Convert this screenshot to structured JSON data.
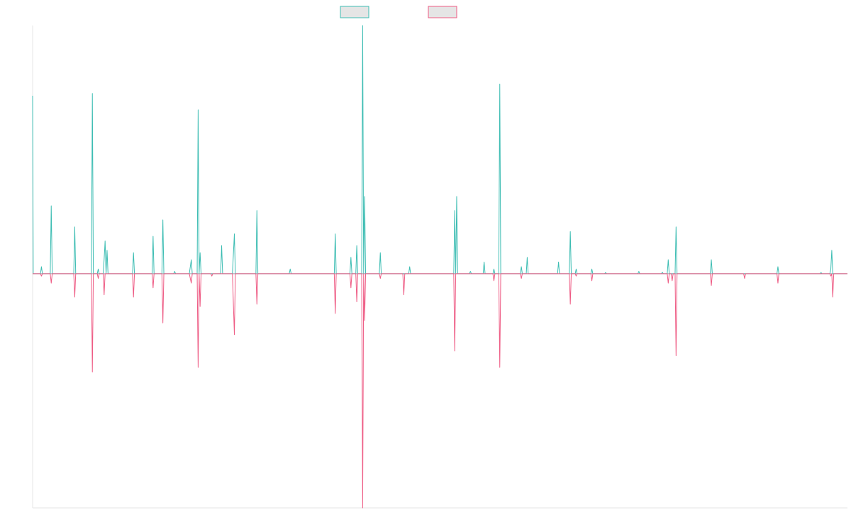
{
  "chart_data": {
    "type": "line",
    "title": "",
    "xlabel": "",
    "ylabel": "",
    "grid": false,
    "legend_position": "top-center",
    "x": [
      0,
      1,
      2,
      3,
      4,
      5,
      6,
      7,
      8,
      9,
      10,
      11,
      12,
      13,
      14,
      15,
      16,
      17,
      18,
      19,
      20,
      21,
      22,
      23,
      24,
      25,
      26,
      27,
      28,
      29,
      30,
      31,
      32,
      33,
      34,
      35,
      36,
      37,
      38,
      39,
      40,
      41,
      42,
      43,
      44,
      45,
      46,
      47,
      48,
      49,
      50,
      51,
      52,
      53,
      54,
      55,
      56,
      57,
      58,
      59,
      60,
      61,
      62,
      63,
      64,
      65,
      66,
      67,
      68,
      69,
      70,
      71,
      72,
      73,
      74,
      75,
      76,
      77,
      78,
      79,
      80,
      81,
      82,
      83,
      84,
      85,
      86,
      87,
      88,
      89,
      90,
      91,
      92,
      93,
      94,
      95,
      96,
      97,
      98,
      99,
      100,
      101,
      102,
      103,
      104,
      105,
      106,
      107,
      108,
      109,
      110,
      111,
      112,
      113,
      114,
      115,
      116,
      117,
      118,
      119,
      120,
      121,
      122,
      123,
      124,
      125,
      126,
      127,
      128,
      129,
      130,
      131,
      132,
      133,
      134,
      135,
      136,
      137,
      138,
      139,
      140,
      141,
      142,
      143,
      144,
      145,
      146,
      147,
      148,
      149,
      150,
      151,
      152,
      153,
      154,
      155,
      156,
      157,
      158,
      159,
      160,
      161,
      162,
      163,
      164,
      165,
      166,
      167,
      168,
      169,
      170,
      171,
      172,
      173,
      174,
      175,
      176,
      177,
      178,
      179,
      180,
      181,
      182,
      183,
      184,
      185,
      186,
      187,
      188,
      189,
      190,
      191,
      192,
      193,
      194,
      195,
      196,
      197,
      198,
      199,
      200,
      201,
      202,
      203,
      204,
      205,
      206,
      207,
      208,
      209,
      210,
      211,
      212,
      213,
      214,
      215,
      216,
      217,
      218,
      219,
      220,
      221,
      222,
      223,
      224,
      225,
      226,
      227,
      228,
      229,
      230,
      231,
      232,
      233,
      234,
      235,
      236,
      237,
      238,
      239,
      240,
      241,
      242,
      243,
      244,
      245,
      246,
      247,
      248,
      249,
      250,
      251,
      252,
      253,
      254,
      255,
      256,
      257,
      258,
      259,
      260,
      261,
      262,
      263,
      264,
      265,
      266,
      267,
      268,
      269,
      270,
      271,
      272,
      273,
      274,
      275,
      276,
      277,
      278,
      279,
      280,
      281,
      282,
      283,
      284,
      285,
      286,
      287,
      288,
      289,
      290,
      291,
      292,
      293,
      294,
      295,
      296,
      297,
      298,
      299,
      300,
      301,
      302,
      303,
      304,
      305,
      306,
      307,
      308,
      309,
      310,
      311,
      312,
      313,
      314,
      315,
      316,
      317,
      318,
      319,
      320,
      321,
      322,
      323,
      324,
      325,
      326,
      327,
      328,
      329,
      330,
      331,
      332,
      333,
      334,
      335,
      336,
      337,
      338,
      339,
      340,
      341,
      342,
      343,
      344,
      345,
      346,
      347,
      348,
      349,
      350,
      351,
      352,
      353,
      354,
      355,
      356,
      357,
      358,
      359,
      360,
      361,
      362,
      363,
      364,
      365,
      366,
      367,
      368,
      369,
      370,
      371,
      372,
      373,
      374,
      375,
      376,
      377,
      378,
      379,
      380,
      381,
      382,
      383,
      384,
      385,
      386,
      387,
      388,
      389,
      390,
      391,
      392,
      393,
      394,
      395,
      396,
      397,
      398,
      399
    ],
    "ylim": [
      -1,
      1.06
    ],
    "series": [
      {
        "color": "#3dbdb3",
        "fill": "#e5e5e5",
        "points": [
          [
            0,
            0.76
          ],
          [
            0.3,
            0
          ],
          [
            4,
            0
          ],
          [
            4.5,
            0.03
          ],
          [
            5,
            0
          ],
          [
            9,
            0
          ],
          [
            9.5,
            0.29
          ],
          [
            10,
            0
          ],
          [
            18,
            0
          ],
          [
            18.5,
            0
          ],
          [
            21,
            0
          ],
          [
            21.5,
            0.2
          ],
          [
            22,
            0
          ],
          [
            30,
            0
          ],
          [
            30.5,
            0.77
          ],
          [
            31,
            0
          ],
          [
            33,
            0
          ],
          [
            33.5,
            0.02
          ],
          [
            34,
            0
          ],
          [
            36,
            0
          ],
          [
            36.5,
            0.06
          ],
          [
            37,
            0.14
          ],
          [
            37.5,
            0
          ],
          [
            38,
            0.1
          ],
          [
            38.5,
            0
          ],
          [
            51,
            0
          ],
          [
            51.5,
            0.09
          ],
          [
            52,
            0
          ],
          [
            61,
            0
          ],
          [
            61.5,
            0.16
          ],
          [
            62,
            0
          ],
          [
            66,
            0
          ],
          [
            66.5,
            0.23
          ],
          [
            67,
            0
          ],
          [
            72,
            0
          ],
          [
            72.5,
            0.01
          ],
          [
            73,
            0
          ],
          [
            80,
            0
          ],
          [
            81,
            0.06
          ],
          [
            81.5,
            0
          ],
          [
            84,
            0
          ],
          [
            84.5,
            0.7
          ],
          [
            85,
            0
          ],
          [
            85.5,
            0.09
          ],
          [
            86,
            0
          ],
          [
            91,
            0
          ],
          [
            91.5,
            0
          ],
          [
            96,
            0
          ],
          [
            96.5,
            0.12
          ],
          [
            97,
            0
          ],
          [
            102,
            0
          ],
          [
            103,
            0.17
          ],
          [
            103.5,
            0
          ],
          [
            114,
            0
          ],
          [
            114.5,
            0.27
          ],
          [
            115,
            0
          ],
          [
            131,
            0
          ],
          [
            131.5,
            0.02
          ],
          [
            132,
            0
          ],
          [
            154,
            0
          ],
          [
            154.5,
            0.17
          ],
          [
            155,
            0
          ],
          [
            162,
            0
          ],
          [
            162.5,
            0.07
          ],
          [
            163,
            0
          ],
          [
            165,
            0
          ],
          [
            165.5,
            0.12
          ],
          [
            166,
            0
          ],
          [
            168,
            0
          ],
          [
            168.5,
            1.06
          ],
          [
            169,
            0
          ],
          [
            169.5,
            0.33
          ],
          [
            170,
            0
          ],
          [
            177,
            0
          ],
          [
            177.5,
            0.09
          ],
          [
            178,
            0
          ],
          [
            189,
            0
          ],
          [
            189.5,
            0
          ],
          [
            192,
            0
          ],
          [
            192.5,
            0.03
          ],
          [
            193,
            0
          ],
          [
            215,
            0
          ],
          [
            215.5,
            0.27
          ],
          [
            216,
            0
          ],
          [
            216.5,
            0.33
          ],
          [
            217,
            0
          ],
          [
            223,
            0
          ],
          [
            223.5,
            0.01
          ],
          [
            224,
            0
          ],
          [
            230,
            0
          ],
          [
            230.5,
            0.05
          ],
          [
            231,
            0
          ],
          [
            235,
            0
          ],
          [
            235.5,
            0.02
          ],
          [
            236,
            0
          ],
          [
            238,
            0
          ],
          [
            238.5,
            0.81
          ],
          [
            239,
            0
          ],
          [
            249,
            0
          ],
          [
            249.5,
            0.03
          ],
          [
            250,
            0
          ],
          [
            252,
            0
          ],
          [
            252.5,
            0.07
          ],
          [
            253,
            0
          ],
          [
            265,
            0
          ],
          [
            265.5,
            0
          ],
          [
            268,
            0
          ],
          [
            268.5,
            0.05
          ],
          [
            269,
            0
          ],
          [
            274,
            0
          ],
          [
            274.5,
            0.18
          ],
          [
            275,
            0
          ],
          [
            277,
            0
          ],
          [
            277.5,
            0.02
          ],
          [
            278,
            0
          ],
          [
            285,
            0
          ],
          [
            285.5,
            0.02
          ],
          [
            286,
            0
          ],
          [
            292,
            0
          ],
          [
            292.5,
            0.005
          ],
          [
            293,
            0
          ],
          [
            309,
            0
          ],
          [
            309.5,
            0.01
          ],
          [
            310,
            0
          ],
          [
            321,
            0
          ],
          [
            321.5,
            0.006
          ],
          [
            322,
            0
          ],
          [
            324,
            0
          ],
          [
            324.5,
            0.06
          ],
          [
            325,
            0
          ],
          [
            328,
            0
          ],
          [
            328.5,
            0.2
          ],
          [
            329,
            0
          ],
          [
            346,
            0
          ],
          [
            346.5,
            0.06
          ],
          [
            347,
            0
          ],
          [
            363,
            0
          ],
          [
            363.5,
            0
          ],
          [
            380,
            0
          ],
          [
            380.5,
            0.03
          ],
          [
            381,
            0
          ],
          [
            402,
            0
          ],
          [
            402.5,
            0.005
          ],
          [
            403,
            0
          ],
          [
            407,
            0
          ],
          [
            407.5,
            0.02
          ],
          [
            408,
            0.1
          ],
          [
            408.5,
            0
          ],
          [
            416,
            0
          ]
        ]
      },
      {
        "color": "#ee5b84",
        "fill": "#e5e5e5",
        "points": [
          [
            0,
            0
          ],
          [
            4,
            0
          ],
          [
            4.5,
            -0.01
          ],
          [
            5,
            0
          ],
          [
            9,
            0
          ],
          [
            9.5,
            -0.04
          ],
          [
            10,
            0
          ],
          [
            21,
            0
          ],
          [
            21.5,
            -0.1
          ],
          [
            22,
            0
          ],
          [
            30,
            0
          ],
          [
            30.5,
            -0.42
          ],
          [
            31,
            0
          ],
          [
            33,
            0
          ],
          [
            33.5,
            -0.02
          ],
          [
            34,
            0
          ],
          [
            36,
            0
          ],
          [
            36.5,
            -0.09
          ],
          [
            37,
            0
          ],
          [
            51,
            0
          ],
          [
            51.5,
            -0.1
          ],
          [
            52,
            0
          ],
          [
            61,
            0
          ],
          [
            61.5,
            -0.06
          ],
          [
            62,
            0
          ],
          [
            66,
            0
          ],
          [
            66.5,
            -0.21
          ],
          [
            67,
            0
          ],
          [
            80,
            0
          ],
          [
            81,
            -0.04
          ],
          [
            81.5,
            0
          ],
          [
            84,
            0
          ],
          [
            84.5,
            -0.4
          ],
          [
            85,
            0
          ],
          [
            85.5,
            -0.14
          ],
          [
            86,
            0
          ],
          [
            91,
            0
          ],
          [
            91.5,
            -0.01
          ],
          [
            92,
            0
          ],
          [
            102,
            0
          ],
          [
            103,
            -0.26
          ],
          [
            103.5,
            0
          ],
          [
            114,
            0
          ],
          [
            114.5,
            -0.13
          ],
          [
            115,
            0
          ],
          [
            154,
            0
          ],
          [
            154.5,
            -0.17
          ],
          [
            155,
            0
          ],
          [
            162,
            0
          ],
          [
            162.5,
            -0.06
          ],
          [
            163,
            0
          ],
          [
            165,
            0
          ],
          [
            165.5,
            -0.12
          ],
          [
            166,
            0
          ],
          [
            168,
            0
          ],
          [
            168.5,
            -1
          ],
          [
            169,
            0
          ],
          [
            169.5,
            -0.2
          ],
          [
            170,
            0
          ],
          [
            177,
            0
          ],
          [
            177.5,
            -0.02
          ],
          [
            178,
            0
          ],
          [
            189,
            0
          ],
          [
            189.5,
            -0.09
          ],
          [
            190,
            0
          ],
          [
            215,
            0
          ],
          [
            215.5,
            -0.33
          ],
          [
            216,
            0
          ],
          [
            235,
            0
          ],
          [
            235.5,
            -0.03
          ],
          [
            236,
            0
          ],
          [
            238,
            0
          ],
          [
            238.5,
            -0.4
          ],
          [
            239,
            0
          ],
          [
            249,
            0
          ],
          [
            249.5,
            -0.02
          ],
          [
            250,
            0
          ],
          [
            274,
            0
          ],
          [
            274.5,
            -0.13
          ],
          [
            275,
            0
          ],
          [
            277,
            0
          ],
          [
            277.5,
            -0.01
          ],
          [
            278,
            0
          ],
          [
            285,
            0
          ],
          [
            285.5,
            -0.03
          ],
          [
            286,
            0
          ],
          [
            324,
            0
          ],
          [
            324.5,
            -0.04
          ],
          [
            325,
            0
          ],
          [
            326,
            0
          ],
          [
            326.5,
            -0.03
          ],
          [
            327,
            0
          ],
          [
            328,
            0
          ],
          [
            328.5,
            -0.35
          ],
          [
            329,
            0
          ],
          [
            346,
            0
          ],
          [
            346.5,
            -0.05
          ],
          [
            347,
            0
          ],
          [
            363,
            0
          ],
          [
            363.5,
            -0.02
          ],
          [
            364,
            0
          ],
          [
            380,
            0
          ],
          [
            380.5,
            -0.04
          ],
          [
            381,
            0
          ],
          [
            407,
            0
          ],
          [
            407.5,
            -0.01
          ],
          [
            408,
            0
          ],
          [
            408.5,
            -0.1
          ],
          [
            409,
            0
          ],
          [
            416,
            0
          ]
        ]
      }
    ]
  }
}
